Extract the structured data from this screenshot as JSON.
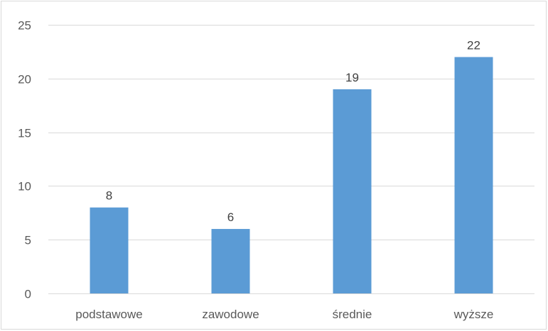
{
  "chart_data": {
    "type": "bar",
    "title": "",
    "xlabel": "",
    "ylabel": "",
    "categories": [
      "podstawowe",
      "zawodowe",
      "średnie",
      "wyższe"
    ],
    "values": [
      8,
      6,
      19,
      22
    ],
    "ylim": [
      0,
      25
    ],
    "yticks": [
      0,
      5,
      10,
      15,
      20,
      25
    ],
    "data_labels": true,
    "grid": true,
    "legend": "none",
    "bar_color": "#5b9bd5",
    "grid_color": "#d9d9d9"
  }
}
